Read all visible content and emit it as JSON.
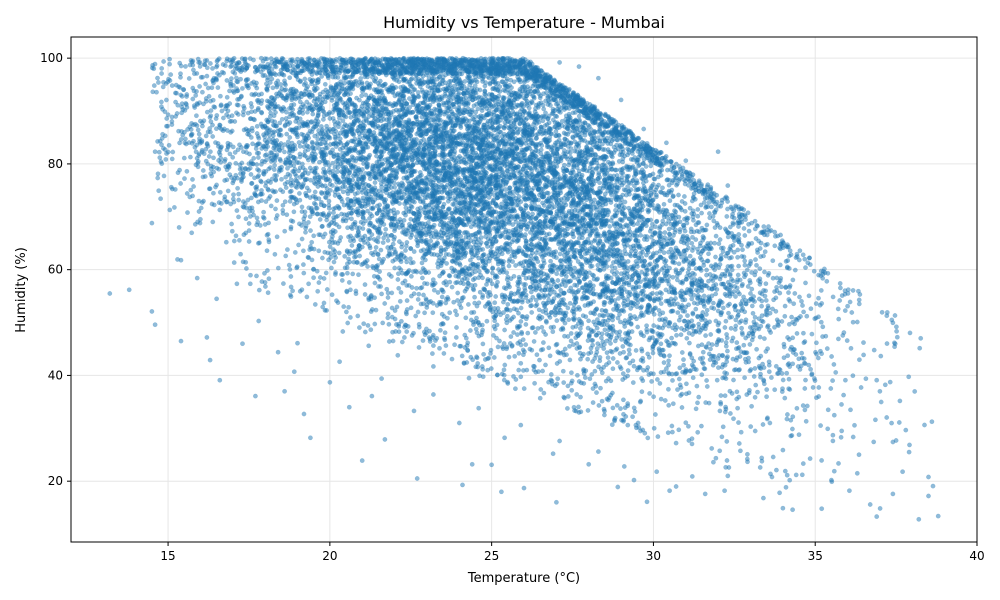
{
  "chart_data": {
    "type": "scatter",
    "title": "Humidity vs Temperature - Mumbai",
    "xlabel": "Temperature (°C)",
    "ylabel": "Humidity (%)",
    "xlim": [
      12,
      40
    ],
    "ylim": [
      8.5,
      104
    ],
    "xticks": [
      15,
      20,
      25,
      30,
      35,
      40
    ],
    "yticks": [
      20,
      40,
      60,
      80,
      100
    ],
    "grid": true,
    "color": "#1f77b4",
    "alpha": 0.5,
    "approximate_point_count": 12000,
    "points": [
      [
        13.2,
        55.5
      ],
      [
        13.8,
        56.2
      ],
      [
        14.5,
        52.1
      ],
      [
        14.6,
        49.6
      ],
      [
        14.5,
        68.8
      ],
      [
        14.6,
        82.3
      ],
      [
        14.7,
        95.4
      ],
      [
        14.8,
        97.1
      ],
      [
        15.1,
        75.6
      ],
      [
        15.4,
        61.8
      ],
      [
        15.4,
        46.5
      ],
      [
        15.9,
        58.4
      ],
      [
        16.3,
        42.9
      ],
      [
        16.6,
        39.1
      ],
      [
        17.7,
        36.1
      ],
      [
        18.6,
        37.0
      ],
      [
        19.2,
        32.7
      ],
      [
        19.4,
        28.2
      ],
      [
        20.6,
        34.0
      ],
      [
        21.0,
        23.9
      ],
      [
        21.7,
        27.9
      ],
      [
        22.7,
        20.5
      ],
      [
        24.1,
        19.3
      ],
      [
        24.4,
        23.2
      ],
      [
        25.0,
        23.1
      ],
      [
        25.3,
        18.0
      ],
      [
        26.0,
        18.7
      ],
      [
        27.0,
        16.0
      ],
      [
        28.9,
        18.9
      ],
      [
        29.8,
        16.1
      ],
      [
        30.5,
        18.2
      ],
      [
        31.6,
        17.6
      ],
      [
        32.2,
        18.2
      ],
      [
        33.4,
        16.8
      ],
      [
        33.9,
        17.8
      ],
      [
        34.0,
        14.9
      ],
      [
        34.3,
        14.6
      ],
      [
        35.2,
        14.8
      ],
      [
        36.7,
        15.6
      ],
      [
        36.9,
        13.3
      ],
      [
        37.4,
        17.6
      ],
      [
        37.7,
        21.8
      ],
      [
        38.2,
        12.8
      ],
      [
        38.5,
        17.2
      ],
      [
        38.5,
        20.8
      ],
      [
        38.8,
        13.4
      ],
      [
        37.6,
        31.1
      ],
      [
        37.5,
        27.7
      ],
      [
        37.0,
        37.0
      ],
      [
        36.9,
        39.1
      ],
      [
        36.3,
        50.1
      ],
      [
        36.0,
        53.1
      ],
      [
        35.1,
        54.6
      ],
      [
        34.7,
        57.5
      ],
      [
        34.7,
        60.4
      ],
      [
        34.2,
        62.6
      ],
      [
        33.3,
        64.0
      ],
      [
        32.8,
        67.8
      ],
      [
        32.7,
        71.5
      ],
      [
        32.3,
        75.9
      ],
      [
        32.0,
        82.3
      ],
      [
        31.6,
        73.5
      ],
      [
        31.0,
        80.6
      ],
      [
        30.4,
        84.0
      ],
      [
        29.7,
        86.6
      ],
      [
        29.0,
        92.1
      ],
      [
        28.3,
        96.2
      ],
      [
        27.7,
        98.4
      ],
      [
        27.1,
        99.2
      ],
      [
        26.2,
        99.3
      ],
      [
        25.0,
        99.5
      ],
      [
        24.0,
        99.6
      ],
      [
        23.0,
        99.9
      ],
      [
        22.0,
        99.6
      ],
      [
        21.0,
        99.4
      ],
      [
        20.0,
        99.7
      ],
      [
        19.0,
        99.8
      ],
      [
        18.0,
        99.9
      ],
      [
        17.2,
        99.1
      ],
      [
        16.7,
        98.8
      ],
      [
        16.2,
        96.6
      ],
      [
        15.8,
        93.8
      ],
      [
        15.3,
        91.1
      ],
      [
        15.0,
        89.3
      ],
      [
        16.0,
        88.1
      ],
      [
        15.5,
        81.1
      ],
      [
        15.6,
        70.8
      ],
      [
        16.8,
        65.2
      ],
      [
        17.4,
        61.4
      ],
      [
        18.0,
        57.6
      ],
      [
        18.8,
        54.9
      ],
      [
        19.9,
        52.3
      ],
      [
        20.4,
        48.3
      ],
      [
        21.2,
        45.6
      ],
      [
        22.1,
        43.8
      ],
      [
        23.2,
        41.7
      ],
      [
        24.3,
        39.5
      ],
      [
        25.5,
        38.5
      ],
      [
        26.5,
        35.7
      ],
      [
        27.7,
        33.0
      ],
      [
        28.8,
        31.4
      ],
      [
        29.6,
        29.5
      ],
      [
        30.7,
        27.2
      ],
      [
        31.8,
        26.2
      ],
      [
        32.9,
        24.2
      ],
      [
        33.8,
        22.1
      ],
      [
        34.6,
        21.2
      ],
      [
        35.5,
        20.2
      ],
      [
        36.3,
        21.5
      ],
      [
        35.8,
        28.3
      ],
      [
        35.4,
        33.5
      ],
      [
        34.9,
        40.3
      ],
      [
        34.2,
        46.8
      ],
      [
        33.5,
        52.4
      ],
      [
        32.6,
        58.1
      ],
      [
        31.6,
        63.9
      ],
      [
        30.6,
        70.2
      ],
      [
        29.5,
        76.4
      ],
      [
        28.6,
        82.7
      ],
      [
        27.6,
        88.3
      ],
      [
        26.5,
        92.5
      ],
      [
        25.5,
        94.6
      ],
      [
        24.5,
        95.8
      ],
      [
        23.4,
        95.2
      ],
      [
        22.3,
        93.7
      ],
      [
        21.2,
        91.1
      ],
      [
        20.1,
        88.6
      ],
      [
        19.0,
        85.1
      ],
      [
        18.0,
        81.6
      ],
      [
        17.0,
        76.4
      ],
      [
        16.6,
        71.3
      ],
      [
        17.1,
        66.4
      ],
      [
        18.3,
        62.9
      ],
      [
        19.5,
        60.1
      ],
      [
        20.6,
        57.6
      ],
      [
        21.8,
        55.6
      ],
      [
        23.0,
        53.4
      ],
      [
        24.2,
        50.9
      ],
      [
        25.4,
        48.6
      ],
      [
        26.6,
        46.2
      ],
      [
        27.8,
        43.7
      ],
      [
        29.0,
        41.3
      ],
      [
        30.2,
        38.5
      ],
      [
        31.4,
        35.9
      ],
      [
        32.6,
        33.8
      ],
      [
        33.6,
        31.0
      ],
      [
        34.5,
        28.8
      ],
      [
        27.1,
        27.6
      ],
      [
        28.3,
        25.6
      ],
      [
        29.1,
        22.8
      ],
      [
        30.1,
        21.8
      ],
      [
        31.2,
        20.9
      ],
      [
        32.3,
        21.0
      ],
      [
        33.3,
        22.6
      ],
      [
        25.9,
        30.6
      ],
      [
        24.6,
        33.8
      ],
      [
        23.2,
        36.4
      ],
      [
        21.6,
        39.4
      ],
      [
        20.3,
        42.6
      ],
      [
        19.0,
        46.1
      ],
      [
        17.8,
        50.3
      ],
      [
        16.5,
        54.5
      ],
      [
        16.2,
        47.2
      ],
      [
        17.3,
        46.0
      ],
      [
        18.4,
        44.4
      ],
      [
        18.9,
        40.7
      ],
      [
        20.0,
        38.7
      ],
      [
        21.3,
        36.1
      ],
      [
        22.6,
        33.3
      ],
      [
        24.0,
        31.0
      ],
      [
        25.4,
        28.2
      ],
      [
        26.9,
        25.2
      ],
      [
        28.0,
        23.2
      ],
      [
        29.4,
        20.2
      ],
      [
        30.7,
        19.0
      ]
    ]
  }
}
